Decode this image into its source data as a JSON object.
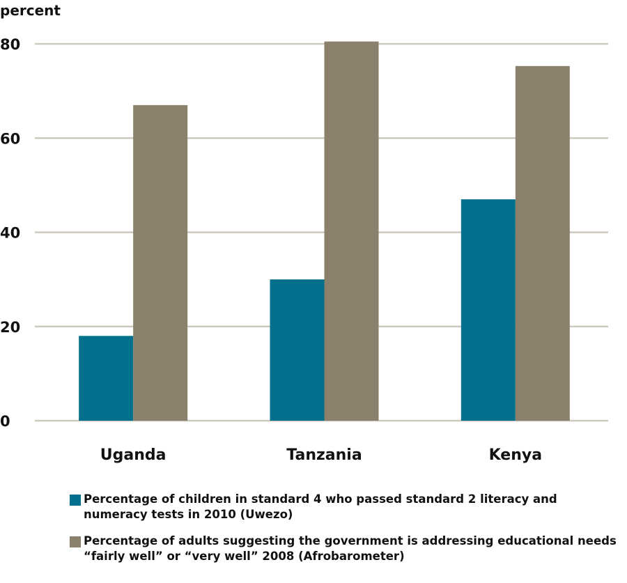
{
  "chart_data": {
    "type": "bar",
    "ylabel": "percent",
    "ylim": [
      0,
      80
    ],
    "yticks": [
      0,
      20,
      40,
      60,
      80
    ],
    "grid": true,
    "categories": [
      "Uganda",
      "Tanzania",
      "Kenya"
    ],
    "series": [
      {
        "name": "Percentage of children in standard 4 who passed standard 2 literacy and numeracy tests in 2010 (Uwezo)",
        "color": "#00708c",
        "values": [
          18,
          30,
          47
        ]
      },
      {
        "name": "Percentage of adults suggesting the government is addressing educational needs “fairly well” or “very well” 2008 (Afrobarometer)",
        "color": "#8a806b",
        "values": [
          67,
          80.5,
          75.3
        ]
      }
    ],
    "legend_position": "bottom"
  },
  "colors": {
    "grid": "#cdc9bf",
    "axis": "#cdc9bf"
  }
}
